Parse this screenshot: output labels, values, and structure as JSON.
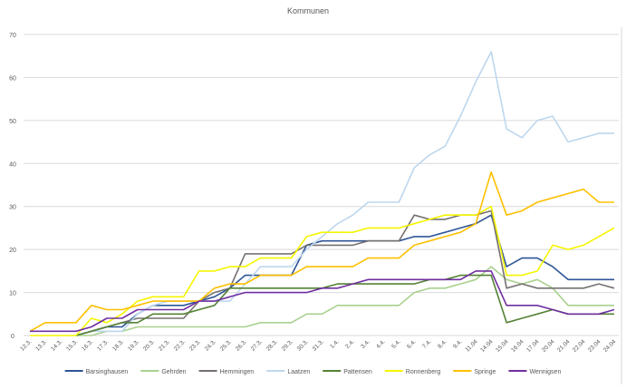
{
  "chart_data": {
    "type": "line",
    "title": "Kommunen",
    "xlabel": "",
    "ylabel": "",
    "ylim": [
      0,
      70
    ],
    "yticks": [
      0,
      10,
      20,
      30,
      40,
      50,
      60,
      70
    ],
    "grid": true,
    "legend_position": "bottom",
    "categories": [
      "12.3.",
      "13.3.",
      "14.3.",
      "15.3.",
      "16.3.",
      "17.3.",
      "18.3.",
      "19.3.",
      "20.3.",
      "21.3.",
      "22.3.",
      "23.3.",
      "24.3.",
      "25.3.",
      "26.3.",
      "27.3.",
      "28.3.",
      "29.3.",
      "30.3.",
      "31.3.",
      "1.4.",
      "2.4.",
      "3.4.",
      "4.4.",
      "5.4.",
      "6.4.",
      "7.4.",
      "8.4.",
      "9.4.",
      "11.04",
      "14.04",
      "15.04",
      "16.04",
      "17.04",
      "20.04",
      "21.04",
      "22.04",
      "23.04",
      "24.04"
    ],
    "series": [
      {
        "name": "Barsinghausen",
        "color": "#2f5597",
        "values": [
          null,
          null,
          null,
          0,
          1,
          2,
          2,
          5,
          7,
          7,
          7,
          8,
          9,
          11,
          14,
          14,
          14,
          14,
          21,
          22,
          22,
          22,
          22,
          22,
          22,
          23,
          23,
          24,
          25,
          26,
          28,
          16,
          18,
          18,
          16,
          13,
          13,
          13,
          13
        ]
      },
      {
        "name": "Gehrden",
        "color": "#a9d18e",
        "values": [
          null,
          null,
          null,
          0,
          0,
          1,
          1,
          2,
          2,
          2,
          2,
          2,
          2,
          2,
          2,
          3,
          3,
          3,
          5,
          5,
          7,
          7,
          7,
          7,
          7,
          10,
          11,
          11,
          12,
          13,
          16,
          13,
          12,
          13,
          11,
          7,
          7,
          7,
          7
        ]
      },
      {
        "name": "Hemmingen",
        "color": "#767171",
        "values": [
          null,
          null,
          null,
          0,
          1,
          2,
          3,
          4,
          4,
          4,
          4,
          8,
          10,
          11,
          19,
          19,
          19,
          19,
          21,
          21,
          21,
          21,
          22,
          22,
          22,
          28,
          27,
          27,
          28,
          28,
          29,
          11,
          12,
          11,
          11,
          11,
          11,
          12,
          11
        ]
      },
      {
        "name": "Laatzen",
        "color": "#bdd7ee",
        "values": [
          null,
          null,
          null,
          0,
          1,
          1,
          1,
          5,
          7,
          8,
          8,
          8,
          8,
          8,
          12,
          16,
          16,
          16,
          20,
          23,
          26,
          28,
          31,
          31,
          31,
          39,
          42,
          44,
          51,
          59,
          66,
          48,
          46,
          50,
          51,
          45,
          46,
          47,
          47
        ]
      },
      {
        "name": "Pattensen",
        "color": "#548235",
        "values": [
          null,
          null,
          null,
          0,
          1,
          2,
          3,
          3,
          5,
          5,
          5,
          6,
          7,
          11,
          11,
          11,
          11,
          11,
          11,
          11,
          12,
          12,
          12,
          12,
          12,
          12,
          13,
          13,
          14,
          14,
          14,
          3,
          4,
          5,
          6,
          5,
          5,
          5,
          5
        ]
      },
      {
        "name": "Ronnenberg",
        "color": "#f5f500",
        "values": [
          0,
          0,
          0,
          0,
          4,
          3,
          5,
          8,
          9,
          9,
          9,
          15,
          15,
          16,
          16,
          18,
          18,
          18,
          23,
          24,
          24,
          24,
          25,
          25,
          25,
          26,
          27,
          28,
          28,
          28,
          30,
          14,
          14,
          15,
          21,
          20,
          21,
          23,
          25
        ]
      },
      {
        "name": "Springe",
        "color": "#ffc000",
        "values": [
          1,
          3,
          3,
          3,
          7,
          6,
          6,
          7,
          8,
          8,
          8,
          8,
          11,
          12,
          12,
          14,
          14,
          14,
          16,
          16,
          16,
          16,
          18,
          18,
          18,
          21,
          22,
          23,
          24,
          26,
          38,
          28,
          29,
          31,
          32,
          33,
          34,
          31,
          31
        ]
      },
      {
        "name": "Wennigsen",
        "color": "#7030a0",
        "values": [
          1,
          1,
          1,
          1,
          2,
          4,
          4,
          6,
          6,
          6,
          6,
          8,
          8,
          9,
          10,
          10,
          10,
          10,
          10,
          11,
          11,
          12,
          13,
          13,
          13,
          13,
          13,
          13,
          13,
          15,
          15,
          7,
          7,
          7,
          6,
          5,
          5,
          5,
          6
        ]
      }
    ]
  }
}
